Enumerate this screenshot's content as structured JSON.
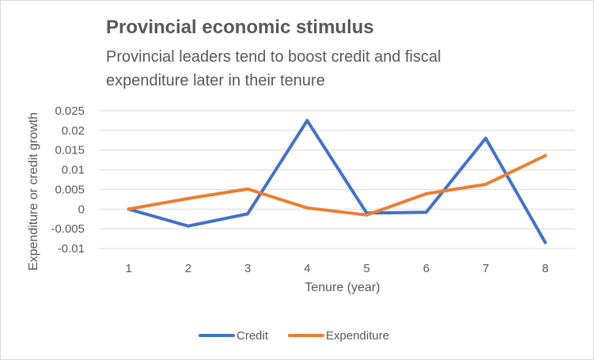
{
  "chart_data": {
    "type": "line",
    "title": "Provincial economic stimulus",
    "subtitle": "Provincial leaders tend to boost credit and fiscal expenditure later in their tenure",
    "xlabel": "Tenure (year)",
    "ylabel": "Expenditure or credit growth",
    "categories": [
      "1",
      "2",
      "3",
      "4",
      "5",
      "6",
      "7",
      "8"
    ],
    "yticks": [
      "-0.01",
      "-0.005",
      "0",
      "0.005",
      "0.01",
      "0.015",
      "0.02",
      "0.025"
    ],
    "ylim": [
      -0.01,
      0.025
    ],
    "grid": true,
    "legend_position": "bottom",
    "series": [
      {
        "name": "Credit",
        "color": "#4472c4",
        "values": [
          0,
          -0.0043,
          -0.0012,
          0.0225,
          -0.001,
          -0.0008,
          0.018,
          -0.0085
        ]
      },
      {
        "name": "Expenditure",
        "color": "#ed7d31",
        "values": [
          0,
          0.0027,
          0.0051,
          0.0003,
          -0.0015,
          0.0039,
          0.0063,
          0.0136
        ]
      }
    ]
  }
}
